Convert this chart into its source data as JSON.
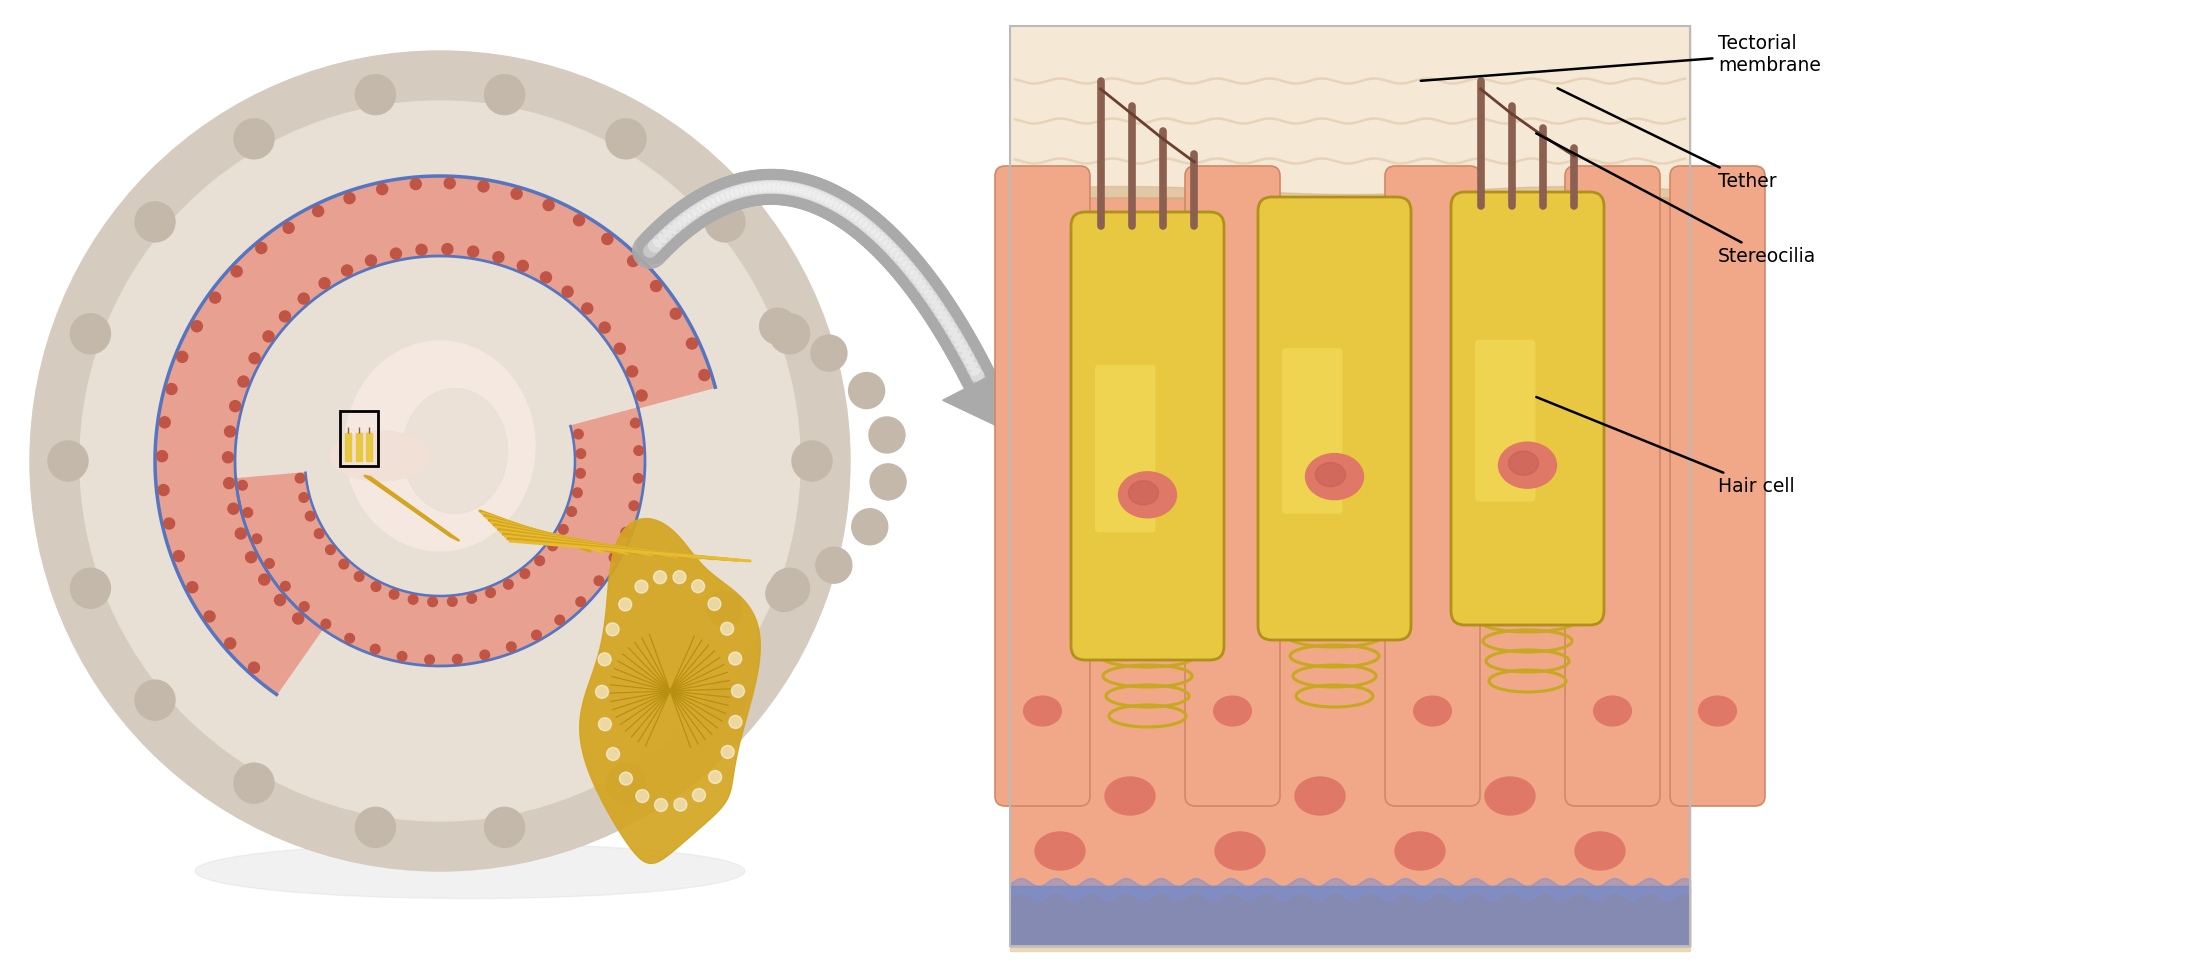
{
  "fig_width": 21.88,
  "fig_height": 9.71,
  "bg_color": "#ffffff",
  "labels": {
    "tectorial_membrane": "Tectorial\nmembrane",
    "tether": "Tether",
    "stereocilia": "Stereocilia",
    "hair_cell": "Hair cell"
  },
  "colors": {
    "bone_outer": "#d6cbbf",
    "bone_inner": "#e8dfd5",
    "bone_dark": "#c4b8aa",
    "cochlea_pink": "#e8a090",
    "cochlea_red_border": "#c05545",
    "cochlea_outline_blue": "#5575c0",
    "scala_fill": "#f5e8e0",
    "inner_light": "#f0e0d5",
    "nerve_yellow": "#d4a520",
    "nerve_yellow2": "#e8bc30",
    "nerve_dark_yellow": "#b89010",
    "tectorial_bg": "#f5e8d5",
    "tectorial_line": "#e0c8a8",
    "hair_cell_yellow": "#e8c840",
    "hair_cell_dark": "#c8a820",
    "hair_cell_border": "#b09018",
    "supporting_cell_pink": "#f0a888",
    "supporting_cell_dark": "#d08868",
    "nucleus_pink": "#e07868",
    "nucleus_dark": "#c05850",
    "stereocilia_brown": "#8B6050",
    "stereocilia_dark": "#6B4030",
    "blue_fluid": "#6080c0",
    "blue_fluid_light": "#8090d0",
    "arrow_gray": "#aaaaaa",
    "arrow_dark": "#888888",
    "black": "#000000",
    "white": "#ffffff",
    "beige_bottom": "#e8d8b8"
  }
}
